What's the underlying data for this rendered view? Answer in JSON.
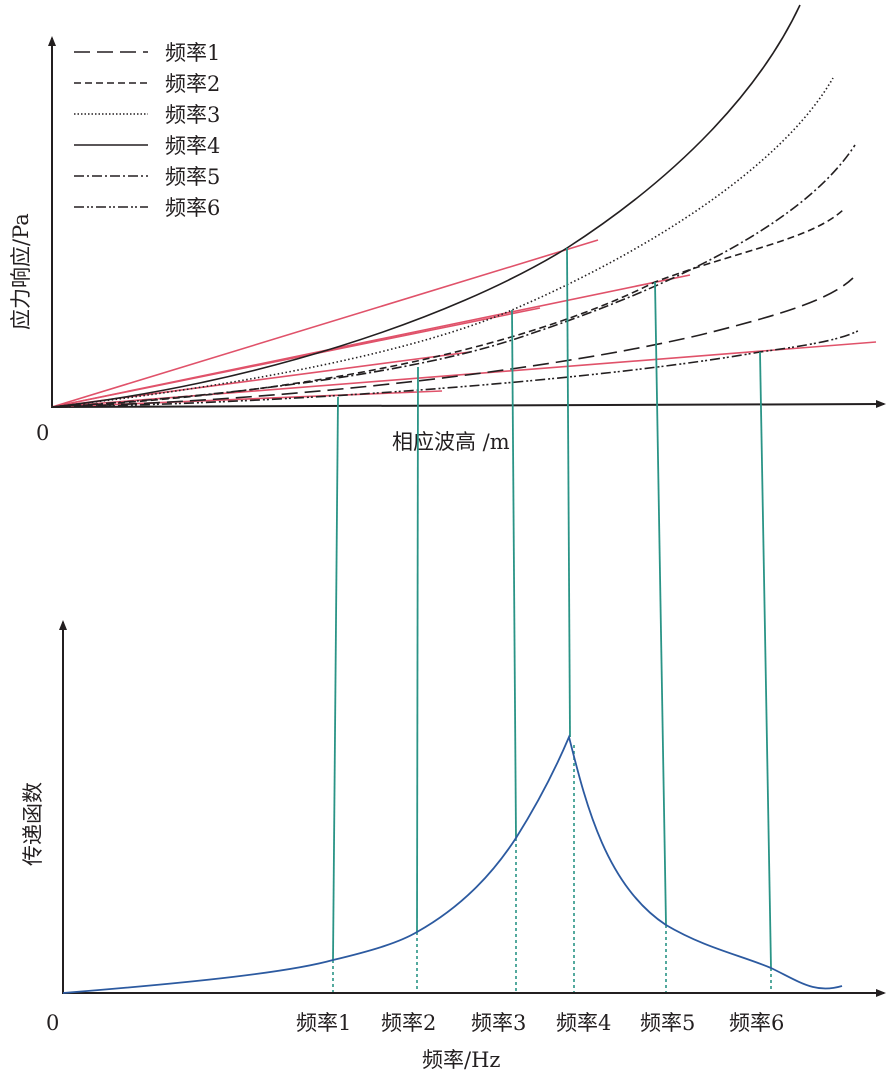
{
  "top_chart": {
    "ylabel": "应力响应/Pa",
    "xlabel": "相应波高 /m",
    "origin_label": "0",
    "legend": [
      "频率1",
      "频率2",
      "频率3",
      "频率4",
      "频率5",
      "频率6"
    ]
  },
  "bottom_chart": {
    "ylabel": "传递函数",
    "xlabel": "频率/Hz",
    "origin_label": "0",
    "ticks": [
      "频率1",
      "频率2",
      "频率3",
      "频率4",
      "频率5",
      "频率6"
    ]
  },
  "colors": {
    "curve": "#231f20",
    "secant": "#e0526a",
    "connector": "#2a9486",
    "transfer": "#2c5aa0"
  }
}
